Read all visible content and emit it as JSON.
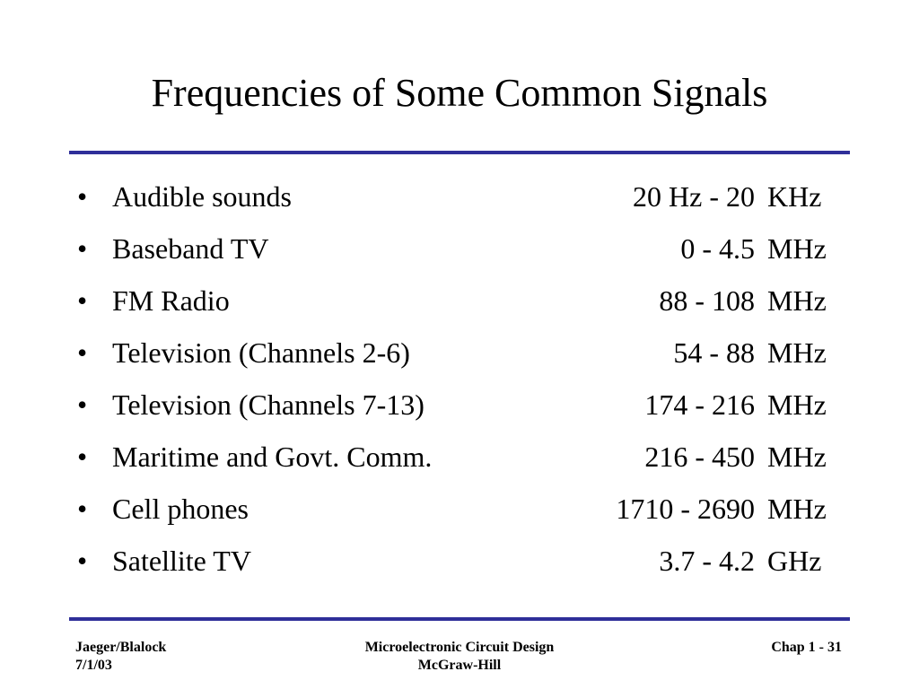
{
  "slide": {
    "title": "Frequencies of Some Common Signals",
    "bullet_glyph": "•"
  },
  "signals": [
    {
      "label": "Audible sounds",
      "range": "20 Hz - 20",
      "unit": "KHz"
    },
    {
      "label": "Baseband TV",
      "range": "0 - 4.5",
      "unit": "MHz"
    },
    {
      "label": "FM Radio",
      "range": "88 - 108",
      "unit": "MHz"
    },
    {
      "label": "Television (Channels 2-6)",
      "range": "54 - 88",
      "unit": "MHz"
    },
    {
      "label": "Television (Channels 7-13)",
      "range": "174 - 216",
      "unit": "MHz"
    },
    {
      "label": "Maritime and Govt. Comm.",
      "range": "216 - 450",
      "unit": "MHz"
    },
    {
      "label": "Cell phones",
      "range": "1710 - 2690",
      "unit": "MHz"
    },
    {
      "label": "Satellite TV",
      "range": "3.7 - 4.2",
      "unit": "GHz"
    }
  ],
  "footer": {
    "authors": "Jaeger/Blalock",
    "date": "7/1/03",
    "book_title": "Microelectronic Circuit Design",
    "publisher": "McGraw-Hill",
    "page": "Chap 1 - 31"
  },
  "colors": {
    "rule": "#2f2f99",
    "text": "#000000",
    "background": "#ffffff"
  }
}
